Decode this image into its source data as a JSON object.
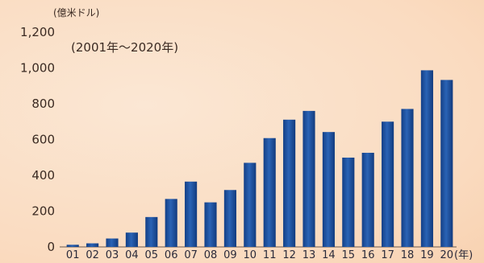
{
  "chart_data": {
    "type": "bar",
    "title": "",
    "unit_label": "(億米ドル)",
    "period_label": "(2001年～2020年)",
    "x_unit_label": "(年)",
    "categories": [
      "01",
      "02",
      "03",
      "04",
      "05",
      "06",
      "07",
      "08",
      "09",
      "10",
      "11",
      "12",
      "13",
      "14",
      "15",
      "16",
      "17",
      "18",
      "19",
      "20"
    ],
    "values": [
      12,
      20,
      47,
      80,
      167,
      268,
      365,
      249,
      318,
      470,
      608,
      711,
      760,
      642,
      499,
      526,
      700,
      771,
      987,
      933
    ],
    "ylim": [
      0,
      1200
    ],
    "yticks": [
      0,
      200,
      400,
      600,
      800,
      1000,
      1200
    ],
    "ytick_labels": [
      "0",
      "200",
      "400",
      "600",
      "800",
      "1,000",
      "1,200"
    ],
    "grid": false,
    "bar_color": "#1a4f9e",
    "bar_highlight": "#3a72c4"
  }
}
